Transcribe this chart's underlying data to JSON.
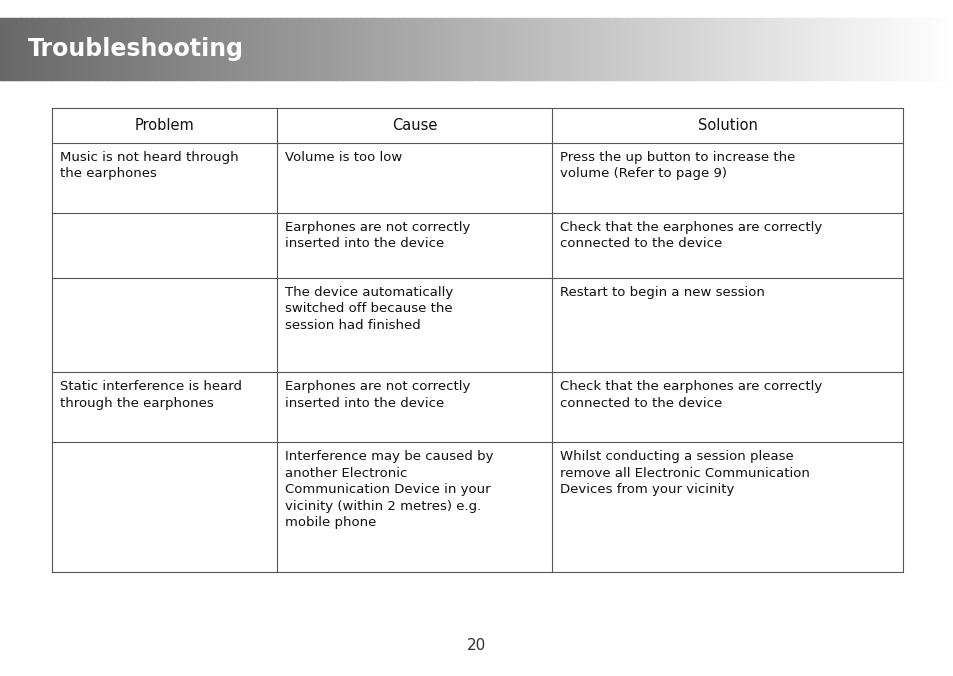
{
  "title": "Troubleshooting",
  "title_bg_left": "#686868",
  "title_bg_right": "#f0f0f0",
  "title_text_color": "#ffffff",
  "title_font_size": 17,
  "page_number": "20",
  "bg_color": "#ffffff",
  "table_border_color": "#555555",
  "header_font_size": 10.5,
  "cell_font_size": 9.5,
  "headers": [
    "Problem",
    "Cause",
    "Solution"
  ],
  "rows": [
    {
      "problem": "Music is not heard through\nthe earphones",
      "cause": "Volume is too low",
      "solution": "Press the up button to increase the\nvolume (Refer to page 9)"
    },
    {
      "problem": "",
      "cause": "Earphones are not correctly\ninserted into the device",
      "solution": "Check that the earphones are correctly\nconnected to the device"
    },
    {
      "problem": "",
      "cause": "The device automatically\nswitched off because the\nsession had finished",
      "solution": "Restart to begin a new session"
    },
    {
      "problem": "Static interference is heard\nthrough the earphones",
      "cause": "Earphones are not correctly\ninserted into the device",
      "solution": "Check that the earphones are correctly\nconnected to the device"
    },
    {
      "problem": "",
      "cause": "Interference may be caused by\nanother Electronic\nCommunication Device in your\nvicinity (within 2 metres) e.g.\nmobile phone",
      "solution": "Whilst conducting a session please\nremove all Electronic Communication\nDevices from your vicinity"
    }
  ]
}
